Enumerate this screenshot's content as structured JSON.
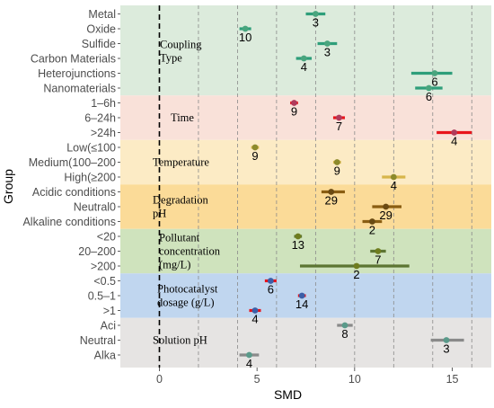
{
  "chart_data": {
    "type": "forest",
    "xlabel": "SMD",
    "ylabel": "Group",
    "xlim": [
      -2,
      17
    ],
    "xticks": [
      0,
      5,
      10,
      15
    ],
    "grid_dashed_x": [
      2,
      4,
      6,
      8,
      10,
      12,
      14,
      16
    ],
    "reference_line_x": 0,
    "groups": [
      {
        "title": "Coupling\nType",
        "band_color": "#dcebdc",
        "marker_color": "#49a57e",
        "bar_color": "#2e9e7a",
        "rows": [
          {
            "label": "Metal",
            "est": 8.0,
            "lo": 7.5,
            "hi": 8.5,
            "n": "3"
          },
          {
            "label": "Oxide",
            "est": 4.4,
            "lo": 4.1,
            "hi": 4.7,
            "n": "10"
          },
          {
            "label": "Sulfide",
            "est": 8.6,
            "lo": 8.1,
            "hi": 9.1,
            "n": "3"
          },
          {
            "label": "Carbon Materials",
            "est": 7.4,
            "lo": 7.0,
            "hi": 7.8,
            "n": "4"
          },
          {
            "label": "Heterojunctions",
            "est": 14.1,
            "lo": 12.9,
            "hi": 15.0,
            "n": "6"
          },
          {
            "label": "Nanomaterials",
            "est": 13.8,
            "lo": 13.1,
            "hi": 14.5,
            "n": "6"
          }
        ]
      },
      {
        "title": "Time",
        "band_color": "#f9e1d9",
        "marker_color": "#b03b5c",
        "bar_color": "#e8141c",
        "rows": [
          {
            "label": "1–6h",
            "est": 6.9,
            "lo": 6.7,
            "hi": 7.1,
            "n": "9"
          },
          {
            "label": "6–24h",
            "est": 9.2,
            "lo": 8.9,
            "hi": 9.5,
            "n": "7"
          },
          {
            "label": ">24h",
            "est": 15.1,
            "lo": 14.2,
            "hi": 16.0,
            "n": "4"
          }
        ]
      },
      {
        "title": "Temperature",
        "band_color": "#fcebc5",
        "marker_color": "#8c8a2c",
        "bar_color": "#d7b64b",
        "rows": [
          {
            "label": "Low(≤100",
            "est": 4.9,
            "lo": 4.7,
            "hi": 5.1,
            "n": "9"
          },
          {
            "label": "Medium(100–200",
            "est": 9.1,
            "lo": 8.9,
            "hi": 9.3,
            "n": "9"
          },
          {
            "label": "High(≥200",
            "est": 12.0,
            "lo": 11.4,
            "hi": 12.6,
            "n": "4"
          }
        ]
      },
      {
        "title": "Degradation\npH",
        "band_color": "#fbdb98",
        "marker_color": "#6b4a12",
        "bar_color": "#8a5e12",
        "rows": [
          {
            "label": "Acidic conditions",
            "est": 8.8,
            "lo": 8.3,
            "hi": 9.5,
            "n": "29"
          },
          {
            "label": "Neutral0",
            "est": 11.6,
            "lo": 10.9,
            "hi": 12.4,
            "n": "29"
          },
          {
            "label": "Alkaline conditions",
            "est": 10.9,
            "lo": 10.4,
            "hi": 11.4,
            "n": "2"
          }
        ]
      },
      {
        "title": "Pollutant\nconcentration\n(mg/L)",
        "band_color": "#cfe3bd",
        "marker_color": "#6f7d1f",
        "bar_color": "#5c7532",
        "rows": [
          {
            "label": "<20",
            "est": 7.1,
            "lo": 6.9,
            "hi": 7.3,
            "n": "13"
          },
          {
            "label": "20–200",
            "est": 11.2,
            "lo": 10.8,
            "hi": 11.6,
            "n": "7"
          },
          {
            "label": ">200",
            "est": 10.1,
            "lo": 7.2,
            "hi": 12.8,
            "n": "2"
          }
        ]
      },
      {
        "title": "Photocatalyst\ndosage (g/L)",
        "band_color": "#c0d6ef",
        "marker_color": "#3b5fa8",
        "bar_color": "#e8141c",
        "rows": [
          {
            "label": "<0.5",
            "est": 5.7,
            "lo": 5.4,
            "hi": 6.0,
            "n": "6"
          },
          {
            "label": "0.5–1",
            "est": 7.3,
            "lo": 7.1,
            "hi": 7.5,
            "n": "14"
          },
          {
            "label": ">1",
            "est": 4.9,
            "lo": 4.6,
            "hi": 5.2,
            "n": "4"
          }
        ]
      },
      {
        "title": "Solution pH",
        "band_color": "#e6e4e3",
        "marker_color": "#5a9a8a",
        "bar_color": "#8a8a8a",
        "rows": [
          {
            "label": "Aci",
            "est": 9.5,
            "lo": 9.1,
            "hi": 9.9,
            "n": "8"
          },
          {
            "label": "Neutral",
            "est": 14.7,
            "lo": 13.9,
            "hi": 15.6,
            "n": "3"
          },
          {
            "label": "Alka",
            "est": 4.6,
            "lo": 4.1,
            "hi": 5.1,
            "n": "4"
          }
        ]
      }
    ]
  }
}
